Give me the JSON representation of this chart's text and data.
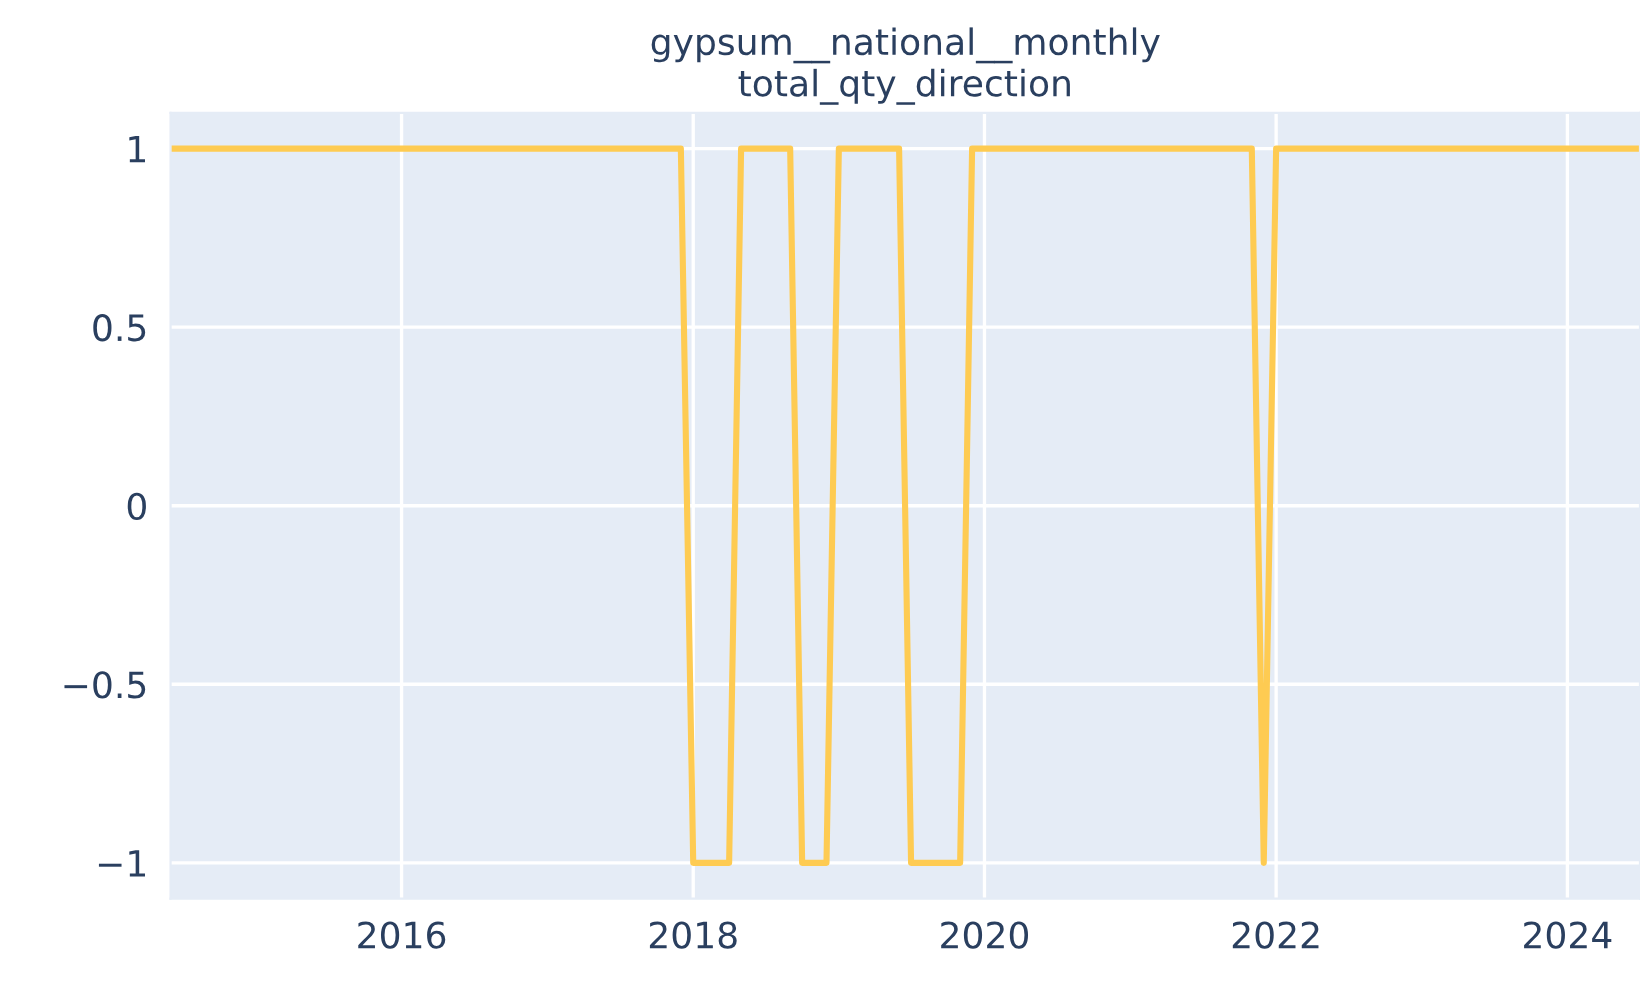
{
  "chart_data": {
    "type": "line",
    "title": "gypsum__national__monthly\ntotal_qty_direction",
    "x": [
      "2014-06",
      "2017-12",
      "2018-01",
      "2018-04",
      "2018-05",
      "2018-09",
      "2018-10",
      "2018-12",
      "2019-01",
      "2019-06",
      "2019-07",
      "2019-11",
      "2019-12",
      "2021-11",
      "2021-12",
      "2022-01",
      "2024-07"
    ],
    "series": [
      {
        "color": "#fecb52",
        "values": [
          1,
          1,
          -1,
          -1,
          1,
          1,
          -1,
          -1,
          1,
          1,
          -1,
          -1,
          1,
          1,
          -1,
          1,
          1
        ]
      }
    ],
    "xlim": [
      "2014-06",
      "2024-07"
    ],
    "xticks": [
      {
        "value": "2016",
        "label": "2016"
      },
      {
        "value": "2018",
        "label": "2018"
      },
      {
        "value": "2020",
        "label": "2020"
      },
      {
        "value": "2022",
        "label": "2022"
      },
      {
        "value": "2024",
        "label": "2024"
      }
    ],
    "ylim": [
      -1.1,
      1.1
    ],
    "yticks": [
      {
        "value": -1,
        "label": "−1"
      },
      {
        "value": -0.5,
        "label": "−0.5"
      },
      0,
      0.5,
      1
    ],
    "grid": true,
    "legend": false,
    "marker": "none",
    "line_style": "solid"
  }
}
